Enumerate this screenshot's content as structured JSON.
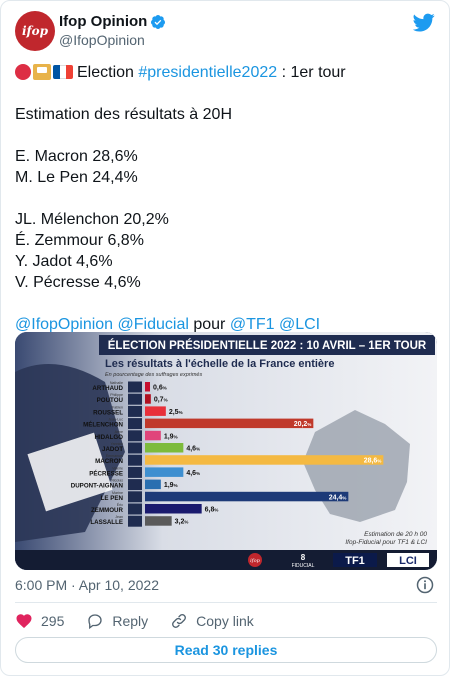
{
  "author": {
    "name": "Ifop Opinion",
    "handle": "@IfopOpinion",
    "avatar_text": "ifop"
  },
  "tweet": {
    "line1_prefix": "Election ",
    "line1_hashtag": "#presidentielle2022",
    "line1_suffix": " : 1er tour",
    "estimate_title": "Estimation des résultats à 20H",
    "results_top": [
      "E. Macron 28,6%",
      "M. Le Pen 24,4%"
    ],
    "results_rest": [
      "JL. Mélenchon 20,2%",
      "É. Zemmour 6,8%",
      "Y. Jadot 4,6%",
      "V. Pécresse 4,6%"
    ],
    "mention1": "@IfopOpinion",
    "mention2": "@Fiducial",
    "pour": " pour ",
    "mention3": "@TF1",
    "mention4": "@LCI"
  },
  "media": {
    "banner": "ÉLECTION PRÉSIDENTIELLE 2022 : 10 AVRIL – 1ER TOUR",
    "subtitle": "Les résultats à l'échelle de la France entière",
    "subtitle2": "En pourcentage des suffrages exprimés",
    "footnote1": "Estimation de 20 h 00",
    "footnote2": "Ifop-Fiducial pour TF1 & LCI",
    "logo_fiducial": "FIDUCIAL",
    "logo_tf1": "TF1",
    "logo_lci": "LCI",
    "logo_ifop": "ifop"
  },
  "chart_data": {
    "type": "bar",
    "orientation": "horizontal",
    "categories": [
      "ARTHAUD",
      "POUTOU",
      "ROUSSEL",
      "MÉLENCHON",
      "HIDALGO",
      "JADOT",
      "MACRON",
      "PÉCRESSE",
      "DUPONT-AIGNAN",
      "LE PEN",
      "ZEMMOUR",
      "LASSALLE"
    ],
    "first_names": [
      "Nathalie",
      "Philippe",
      "Fabien",
      "Jean-Luc",
      "Anne",
      "Yannick",
      "Emmanuel",
      "Valérie",
      "Nicolas",
      "Marine",
      "Éric",
      "Jean"
    ],
    "values": [
      0.6,
      0.7,
      2.5,
      20.2,
      1.9,
      4.6,
      28.6,
      4.6,
      1.9,
      24.4,
      6.8,
      3.2
    ],
    "labels": [
      "0,6",
      "0,7",
      "2,5",
      "20,2",
      "1,9",
      "4,6",
      "28,6",
      "4,6",
      "1,9",
      "24,4",
      "6,8",
      "3,2"
    ],
    "unit": "%",
    "colors": [
      "#c8102e",
      "#b01020",
      "#e8303a",
      "#c0392b",
      "#e0457b",
      "#7dbb3c",
      "#f4b942",
      "#3e8fd0",
      "#2a6fb0",
      "#1d3a78",
      "#1a1a6e",
      "#5a5a5a"
    ]
  },
  "footer": {
    "timestamp": "6:00 PM · Apr 10, 2022",
    "likes": "295",
    "reply_label": "Reply",
    "copy_label": "Copy link",
    "read_replies": "Read 30 replies"
  }
}
